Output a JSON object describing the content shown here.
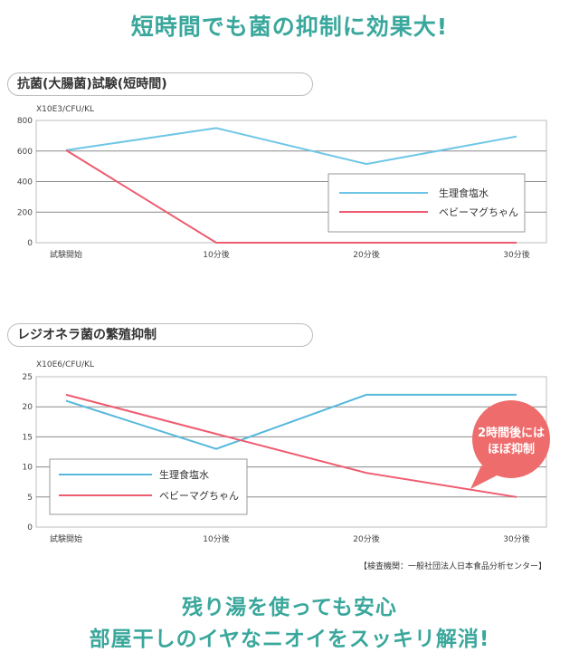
{
  "headline": "短時間でも菌の抑制に効果大!",
  "footer": {
    "line1": "残り湯を使っても安心",
    "line2": "部屋干しのイヤなニオイをスッキリ解消!"
  },
  "source_note": "【検査機関：一般社団法人日本食品分析センター】",
  "colors": {
    "accent": "#3aa79c",
    "saline": "#6ec6e6",
    "saline_bottom": "#55b8dc",
    "product": "#ef5b6f",
    "bubble": "#ee6c6c"
  },
  "chart_data": [
    {
      "type": "line",
      "title": "抗菌(大腸菌)試験(短時間)",
      "unit_label": "X10E3/CFU/KL",
      "categories": [
        "試験開始",
        "10分後",
        "20分後",
        "30分後"
      ],
      "x_index": [
        0,
        0.5,
        1,
        1.5,
        2,
        2.5,
        3
      ],
      "ylim": [
        0,
        800
      ],
      "yticks": [
        "0",
        "200",
        "400",
        "600",
        "800"
      ],
      "series": [
        {
          "name": "生理食塩水",
          "x": [
            0,
            1,
            2,
            3
          ],
          "values": [
            605,
            750,
            515,
            695
          ]
        },
        {
          "name": "ベビーマグちゃん",
          "x": [
            0,
            1,
            2,
            3
          ],
          "values": [
            605,
            0,
            0,
            0
          ]
        }
      ],
      "grid": true,
      "legend": "middle-right"
    },
    {
      "type": "line",
      "title": "レジオネラ菌の繁殖抑制",
      "unit_label": "X10E6/CFU/KL",
      "categories": [
        "試験開始",
        "10分後",
        "20分後",
        "30分後"
      ],
      "ylim": [
        0,
        25
      ],
      "yticks": [
        "0",
        "5",
        "10",
        "15",
        "20",
        "25"
      ],
      "series": [
        {
          "name": "生理食塩水",
          "x": [
            0,
            1,
            2,
            3
          ],
          "values": [
            21,
            13,
            22,
            22
          ]
        },
        {
          "name": "ベビーマグちゃん",
          "x": [
            0,
            1,
            2,
            3
          ],
          "values": [
            22,
            15.5,
            9,
            5
          ]
        }
      ],
      "grid": true,
      "legend": "bottom-left",
      "annotation": {
        "line1": "2時間後には",
        "line2": "ほぼ抑制"
      }
    }
  ]
}
